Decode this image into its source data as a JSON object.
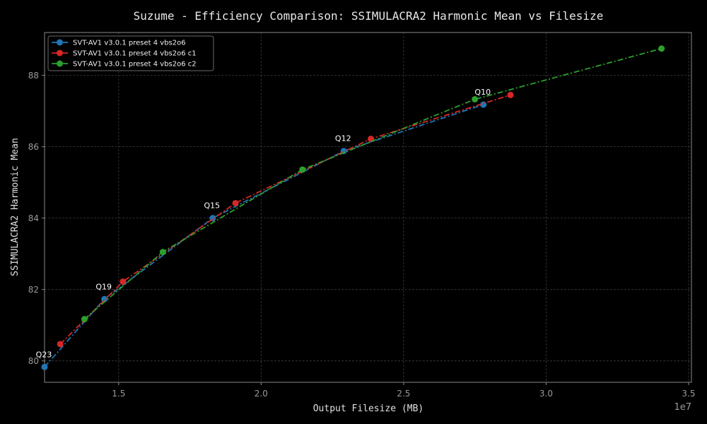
{
  "chart_data": {
    "type": "line",
    "title": "Suzume - Efficiency Comparison: SSIMULACRA2 Harmonic Mean vs Filesize",
    "xlabel": "Output Filesize (MB)",
    "ylabel": "SSIMULACRA2 Harmonic Mean",
    "x_offset_label": "1e7",
    "xlim": [
      12400000,
      35100000
    ],
    "ylim": [
      79.4,
      89.2
    ],
    "x_ticks": [
      {
        "value": 15000000,
        "label": "1.5"
      },
      {
        "value": 20000000,
        "label": "2.0"
      },
      {
        "value": 25000000,
        "label": "2.5"
      },
      {
        "value": 30000000,
        "label": "3.0"
      },
      {
        "value": 35000000,
        "label": "3.5"
      }
    ],
    "y_ticks": [
      {
        "value": 80,
        "label": "80"
      },
      {
        "value": 82,
        "label": "82"
      },
      {
        "value": 84,
        "label": "84"
      },
      {
        "value": 86,
        "label": "86"
      },
      {
        "value": 88,
        "label": "88"
      }
    ],
    "grid": true,
    "legend_position": "top-left",
    "series": [
      {
        "name": "SVT-AV1 v3.0.1 preset 4 vbs2o6",
        "color": "#1f77b4",
        "x": [
          12400000,
          14500000,
          18300000,
          22900000,
          27800000
        ],
        "y": [
          79.83,
          81.73,
          84.0,
          85.88,
          87.18
        ]
      },
      {
        "name": "SVT-AV1 v3.0.1 preset 4 vbs2o6 c1",
        "color": "#d62728",
        "x": [
          12950000,
          15150000,
          19100000,
          23850000,
          28750000
        ],
        "y": [
          80.47,
          82.22,
          84.42,
          86.22,
          87.45
        ]
      },
      {
        "name": "SVT-AV1 v3.0.1 preset 4 vbs2o6 c2",
        "color": "#2ca02c",
        "x": [
          13800000,
          16550000,
          21450000,
          27500000,
          34050000
        ],
        "y": [
          81.17,
          83.05,
          85.36,
          87.33,
          88.75
        ]
      }
    ],
    "annotations": [
      {
        "text": "Q23",
        "x": 12400000,
        "y": 79.83
      },
      {
        "text": "Q19",
        "x": 14500000,
        "y": 81.73
      },
      {
        "text": "Q15",
        "x": 18300000,
        "y": 84.0
      },
      {
        "text": "Q12",
        "x": 22900000,
        "y": 85.88
      },
      {
        "text": "Q10",
        "x": 27800000,
        "y": 87.18
      }
    ]
  }
}
